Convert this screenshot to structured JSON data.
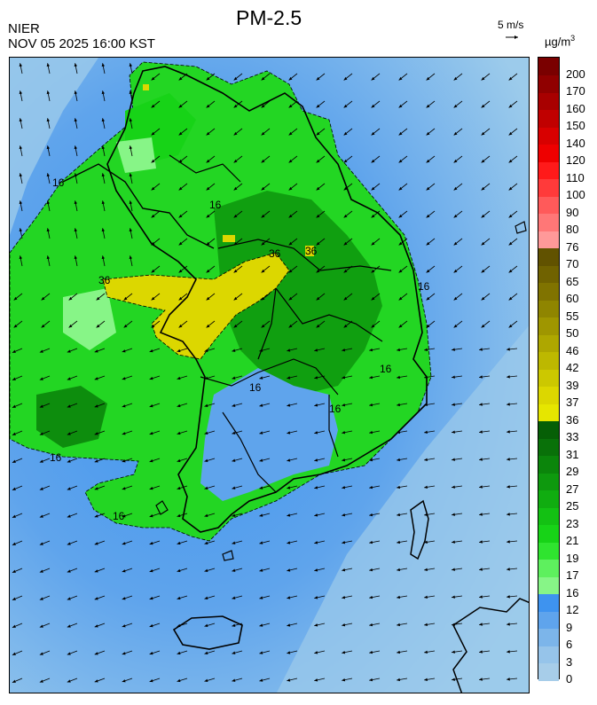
{
  "header": {
    "agency": "NIER",
    "datetime": "NOV 05 2025 16:00 KST",
    "title": "PM-2.5",
    "wind_scale": "5 m/s",
    "unit_main": "µg/m",
    "unit_sup": "3"
  },
  "colorbar": {
    "labels": [
      "0",
      "3",
      "6",
      "9",
      "12",
      "16",
      "17",
      "19",
      "21",
      "23",
      "25",
      "27",
      "29",
      "31",
      "33",
      "36",
      "37",
      "39",
      "42",
      "46",
      "50",
      "55",
      "60",
      "65",
      "70",
      "76",
      "80",
      "90",
      "100",
      "110",
      "120",
      "140",
      "150",
      "160",
      "170",
      "200"
    ],
    "colors": [
      "#a7cde9",
      "#96c4ea",
      "#7cb5ea",
      "#5fa4ec",
      "#3e93ef",
      "#87f587",
      "#5ef05e",
      "#2fe42f",
      "#17d317",
      "#13c113",
      "#10ad10",
      "#0e990e",
      "#0b850b",
      "#097109",
      "#065f06",
      "#e6e600",
      "#dcd700",
      "#ccc800",
      "#bdb800",
      "#aea700",
      "#9f9600",
      "#8f8500",
      "#807300",
      "#706200",
      "#615200",
      "#ff9999",
      "#ff7777",
      "#ff5a5a",
      "#ff3a3a",
      "#ff1a1a",
      "#ee0000",
      "#d80000",
      "#c00000",
      "#a80000",
      "#900000",
      "#7a0000"
    ]
  },
  "map": {
    "contour_labels": [
      "16",
      "16",
      "16",
      "16",
      "16",
      "16",
      "16",
      "16",
      "36",
      "36",
      "36"
    ],
    "background_color": "#7eb8ee",
    "land_color": "#23d623"
  }
}
